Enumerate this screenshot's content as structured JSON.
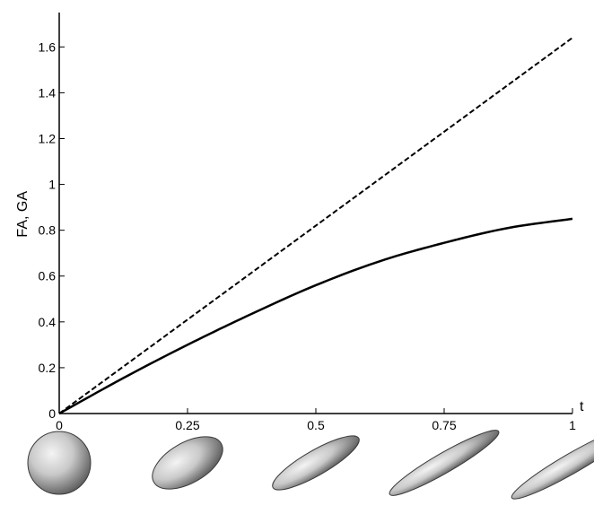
{
  "chart_data": {
    "type": "line",
    "title": "",
    "xlabel": "t",
    "ylabel": "FA, GA",
    "xlim": [
      0,
      1
    ],
    "ylim": [
      0,
      1.75
    ],
    "grid": false,
    "x_ticks": [
      0,
      0.25,
      0.5,
      0.75,
      1
    ],
    "x_tick_labels": [
      "0",
      "0.25",
      "0.5",
      "0.75",
      "1"
    ],
    "y_ticks": [
      0,
      0.2,
      0.4,
      0.6,
      0.8,
      1,
      1.2,
      1.4,
      1.6
    ],
    "y_tick_labels": [
      "0",
      "0.2",
      "0.4",
      "0.6",
      "0.8",
      "1",
      "1.2",
      "1.4",
      "1.6"
    ],
    "series": [
      {
        "style": "solid",
        "x": [
          0,
          0.125,
          0.25,
          0.375,
          0.5,
          0.625,
          0.75,
          0.875,
          1
        ],
        "y": [
          0,
          0.155,
          0.3,
          0.435,
          0.56,
          0.665,
          0.745,
          0.81,
          0.85
        ]
      },
      {
        "style": "dashed",
        "x": [
          0,
          1
        ],
        "y": [
          0,
          1.64
        ]
      }
    ],
    "ellipsoids": [
      {
        "t": 0,
        "elongation": 1.0
      },
      {
        "t": 0.25,
        "elongation": 1.6
      },
      {
        "t": 0.5,
        "elongation": 2.6
      },
      {
        "t": 0.75,
        "elongation": 4.2
      },
      {
        "t": 1,
        "elongation": 6.5
      }
    ]
  }
}
